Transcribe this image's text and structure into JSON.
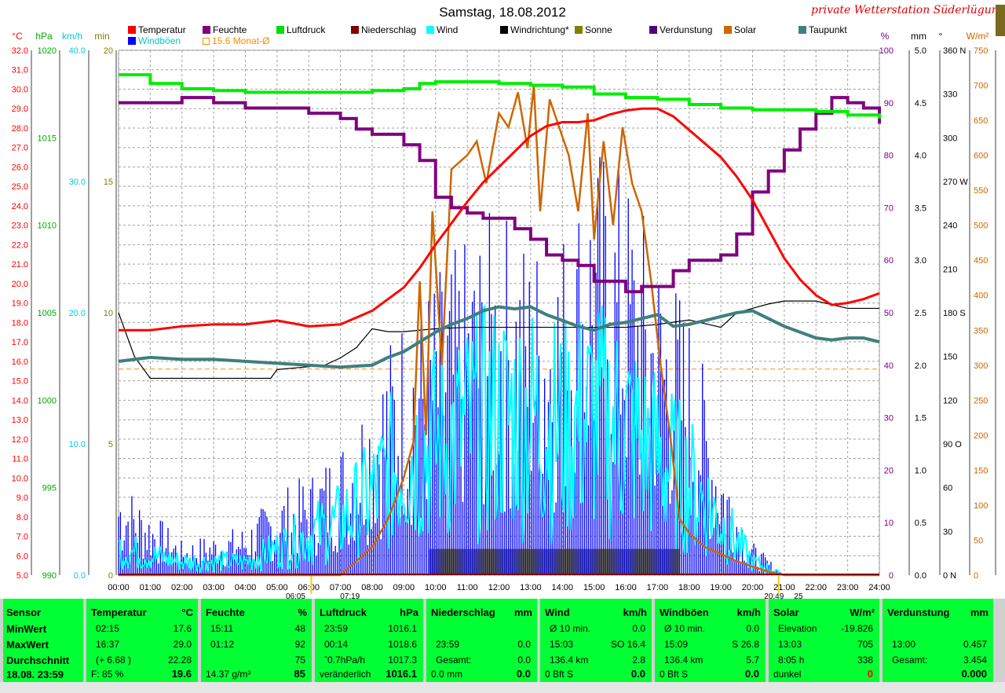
{
  "title": "Samstag, 18.08.2012",
  "station": "private Wetterstation Süderlügum",
  "legend": [
    {
      "label": "Temperatur",
      "color": "#ff0000",
      "x": 163,
      "row": 0
    },
    {
      "label": "Feuchte",
      "color": "#800080",
      "x": 258,
      "row": 0
    },
    {
      "label": "Luftdruck",
      "color": "#00dd00",
      "x": 352,
      "row": 0
    },
    {
      "label": "Niederschlag",
      "color": "#800000",
      "x": 447,
      "row": 0
    },
    {
      "label": "Wind",
      "color": "#00ffff",
      "x": 543,
      "row": 0
    },
    {
      "label": "Windrichtung*",
      "color": "#000000",
      "x": 637,
      "row": 0
    },
    {
      "label": "Sonne",
      "color": "#808000",
      "x": 732,
      "row": 0
    },
    {
      "label": "Verdunstung",
      "color": "#4b0082",
      "x": 827,
      "row": 0
    },
    {
      "label": "Solar",
      "color": "#cc6600",
      "x": 922,
      "row": 0
    },
    {
      "label": "Taupunkt",
      "color": "#3f7f7f",
      "x": 1017,
      "row": 0
    },
    {
      "label": "Windböen",
      "color": "#0000ff",
      "x": 163,
      "row": 1
    },
    {
      "label": "15.6 Monat-Ø",
      "color": "#ff8c00",
      "x": 258,
      "row": 1,
      "hollow": true
    }
  ],
  "axes": {
    "temp": {
      "unit": "°C",
      "color": "#ff0000",
      "min": 5.0,
      "max": 32.0,
      "step": 1.0
    },
    "press": {
      "unit": "hPa",
      "color": "#00aa00",
      "ticks": [
        "1020",
        "1015",
        "1010",
        "1005",
        "1000",
        "995",
        "990"
      ]
    },
    "wind": {
      "unit": "km/h",
      "color": "#00cccc",
      "ticks": [
        "40.0",
        "30.0",
        "20.0",
        "10.0",
        "0.0"
      ]
    },
    "sun": {
      "unit": "min",
      "color": "#808000",
      "ticks": [
        "20",
        "15",
        "10",
        "5",
        "0"
      ]
    },
    "hum": {
      "unit": "%",
      "color": "#800080",
      "ticks": [
        "100",
        "90",
        "80",
        "70",
        "60",
        "50",
        "40",
        "30",
        "20",
        "10",
        "0"
      ]
    },
    "rain": {
      "unit": "mm",
      "color": "#000000",
      "ticks": [
        "5.0",
        "4.5",
        "4.0",
        "3.5",
        "3.0",
        "2.5",
        "2.0",
        "1.5",
        "1.0",
        "0.5",
        "0.0"
      ]
    },
    "dir": {
      "unit": "°",
      "color": "#000000",
      "ticks": [
        "360 N",
        "330",
        "300",
        "270 W",
        "240",
        "210",
        "180 S",
        "150",
        "120",
        "90 O",
        "60",
        "30",
        "0 N"
      ]
    },
    "solar": {
      "unit": "W/m²",
      "color": "#cc6600",
      "ticks": [
        "750",
        "700",
        "650",
        "600",
        "550",
        "500",
        "450",
        "400",
        "350",
        "300",
        "250",
        "200",
        "150",
        "100",
        "50",
        "0"
      ]
    },
    "time": [
      "00:00",
      "01:00",
      "02:00",
      "03:00",
      "04:00",
      "05:00",
      "06:00",
      "07:00",
      "08:00",
      "09:00",
      "10:00",
      "11:00",
      "12:00",
      "13:00",
      "14:00",
      "15:00",
      "16:00",
      "17:00",
      "18:00",
      "19:00",
      "20:00",
      "21:00",
      "22:00",
      "23:00",
      "24:00"
    ]
  },
  "markers": {
    "sunrise": "06:05",
    "sunrise_bf": "07:19",
    "sunset": "20:49",
    "sunset_bf": "25"
  },
  "chart_data": {
    "type": "line",
    "title": "Samstag, 18.08.2012",
    "x_unit": "hour of day",
    "xlim": [
      0,
      24
    ],
    "series": [
      {
        "name": "Temperatur",
        "unit": "°C",
        "x": [
          0,
          1,
          2,
          3,
          4,
          5,
          6,
          7,
          8,
          8.5,
          9,
          9.5,
          10,
          10.5,
          11,
          11.5,
          12,
          12.5,
          13,
          13.5,
          14,
          14.5,
          15,
          15.5,
          16,
          16.5,
          17,
          17.5,
          18,
          18.5,
          19,
          19.5,
          20,
          20.5,
          21,
          21.5,
          22,
          22.5,
          23,
          23.5,
          24
        ],
        "y": [
          17.6,
          17.6,
          17.8,
          17.9,
          17.9,
          18.1,
          17.8,
          17.9,
          18.6,
          19.2,
          19.8,
          20.8,
          22.0,
          23.1,
          24.2,
          25.2,
          26.0,
          26.8,
          27.6,
          28.1,
          28.3,
          28.3,
          28.4,
          28.7,
          28.9,
          29.0,
          29.0,
          28.6,
          27.9,
          27.2,
          26.5,
          25.5,
          24.3,
          22.8,
          21.3,
          20.2,
          19.4,
          18.9,
          19.0,
          19.2,
          19.5
        ]
      },
      {
        "name": "Feuchte",
        "unit": "%",
        "x": [
          0,
          1,
          2,
          3,
          4,
          5,
          6,
          7,
          7.5,
          8,
          8.5,
          9,
          9.5,
          10,
          10.5,
          11,
          11.5,
          12,
          12.5,
          13,
          13.5,
          14,
          14.5,
          15,
          15.5,
          16,
          16.5,
          17,
          17.5,
          18,
          18.5,
          19,
          19.5,
          20,
          20.5,
          21,
          21.5,
          22,
          22.5,
          23,
          23.5,
          24
        ],
        "y": [
          90,
          90,
          91,
          90,
          89,
          89,
          88,
          87,
          85,
          84,
          84,
          82,
          79,
          72,
          70,
          69,
          68,
          68,
          66,
          64,
          61,
          60,
          59,
          56,
          56,
          54,
          55,
          55,
          58,
          60,
          60,
          61,
          65,
          73,
          77,
          81,
          85,
          88,
          91,
          90,
          89,
          86
        ]
      },
      {
        "name": "Luftdruck",
        "unit": "hPa",
        "x": [
          0,
          1,
          2,
          3,
          4,
          5,
          6,
          7,
          8,
          9,
          9.5,
          10,
          11,
          12,
          13,
          14,
          15,
          16,
          17,
          18,
          19,
          20,
          21,
          22,
          23,
          24
        ],
        "y": [
          1018.6,
          1018.1,
          1017.8,
          1017.7,
          1017.6,
          1017.6,
          1017.6,
          1017.6,
          1017.7,
          1017.8,
          1018.1,
          1018.2,
          1018.2,
          1018.1,
          1018.0,
          1017.9,
          1017.5,
          1017.3,
          1017.2,
          1016.9,
          1016.7,
          1016.6,
          1016.6,
          1016.5,
          1016.3,
          1016.1
        ]
      },
      {
        "name": "Taupunkt",
        "unit": "°C",
        "x": [
          0,
          1,
          2,
          3,
          4,
          5,
          6,
          7,
          8,
          8.5,
          9,
          9.5,
          10,
          10.5,
          11,
          11.5,
          12,
          12.5,
          13,
          13.5,
          14,
          14.5,
          15,
          15.5,
          16,
          16.5,
          17,
          17.5,
          18,
          18.5,
          19,
          19.5,
          20,
          20.5,
          21,
          21.5,
          22,
          22.5,
          23,
          23.5,
          24
        ],
        "y": [
          16.0,
          16.2,
          16.1,
          16.1,
          16.0,
          15.9,
          15.8,
          15.7,
          15.8,
          16.2,
          16.5,
          17.0,
          17.5,
          17.9,
          18.2,
          18.6,
          18.8,
          18.7,
          18.8,
          18.4,
          18.1,
          17.8,
          17.6,
          17.9,
          18.0,
          18.2,
          18.4,
          17.8,
          17.9,
          18.1,
          18.3,
          18.5,
          18.6,
          18.2,
          17.8,
          17.5,
          17.2,
          17.1,
          17.2,
          17.2,
          17.0
        ]
      },
      {
        "name": "Solar",
        "unit": "W/m²",
        "x": [
          0,
          7,
          7.5,
          8,
          8.5,
          9,
          9.3,
          9.5,
          9.7,
          9.9,
          10.2,
          10.5,
          11,
          11.3,
          11.6,
          12,
          12.3,
          12.6,
          12.9,
          13.1,
          13.3,
          13.6,
          13.9,
          14.2,
          14.5,
          14.8,
          15,
          15.3,
          15.6,
          15.9,
          16.2,
          16.5,
          16.8,
          17.1,
          17.4,
          17.7,
          18,
          18.5,
          19,
          19.5,
          20,
          20.5,
          21,
          24
        ],
        "y": [
          0,
          0,
          20,
          40,
          80,
          140,
          190,
          420,
          200,
          520,
          300,
          580,
          600,
          620,
          560,
          660,
          640,
          690,
          610,
          700,
          520,
          680,
          640,
          600,
          520,
          660,
          480,
          620,
          500,
          640,
          560,
          520,
          420,
          300,
          200,
          80,
          60,
          40,
          30,
          20,
          12,
          5,
          0,
          0
        ]
      },
      {
        "name": "Windrichtung*",
        "unit": "°",
        "x": [
          0,
          0.5,
          1,
          2,
          3,
          4,
          4.8,
          5,
          6,
          6.5,
          7,
          7.5,
          8,
          8.5,
          9,
          9.5,
          10,
          11,
          12,
          13,
          14,
          15,
          16,
          17,
          18,
          19,
          19.5,
          20,
          20.5,
          21,
          22,
          23,
          24
        ],
        "y": [
          180,
          150,
          135,
          135,
          135,
          135,
          135,
          141,
          143,
          144,
          149,
          156,
          169,
          167,
          167,
          168,
          169,
          170,
          170,
          170,
          170,
          170,
          170,
          172,
          175,
          170,
          180,
          183,
          186,
          188,
          188,
          183,
          183
        ]
      },
      {
        "name": "Wind",
        "unit": "km/h",
        "x": [
          0,
          2,
          4,
          5,
          6,
          7,
          8,
          9,
          10,
          11,
          12,
          13,
          14,
          15,
          16,
          17,
          18,
          19,
          20,
          21,
          24
        ],
        "y": [
          2,
          1,
          1,
          2,
          3,
          4,
          6,
          9,
          10,
          11,
          12,
          12,
          11,
          12,
          11,
          9,
          7,
          4,
          1,
          0,
          0
        ]
      },
      {
        "name": "Windböen",
        "unit": "km/h",
        "x": [
          0,
          2,
          4,
          5,
          6,
          7,
          8,
          9,
          10,
          11,
          12,
          13,
          14,
          15,
          16,
          17,
          18,
          19,
          20,
          21,
          24
        ],
        "y": [
          6,
          2,
          3,
          5,
          6,
          8,
          12,
          16,
          18,
          20,
          22,
          20,
          21,
          26,
          24,
          20,
          16,
          8,
          2,
          0,
          0
        ]
      },
      {
        "name": "Sonne",
        "unit": "min",
        "x": [
          9.8,
          17.7
        ],
        "y": [
          1,
          1
        ]
      },
      {
        "name": "15.6 Monat-Ø",
        "unit": "°C",
        "x": [
          0,
          24
        ],
        "y": [
          15.6,
          15.6
        ]
      }
    ]
  },
  "summary": {
    "sensor": {
      "head": "Sensor",
      "rows": [
        "MinWert",
        "MaxWert",
        "Durchschnitt",
        "18.08. 23:59"
      ]
    },
    "temperatur": {
      "head": "Temperatur",
      "unit": "°C",
      "rows": [
        [
          "02:15",
          "17.6"
        ],
        [
          "16:37",
          "29.0"
        ],
        [
          "(+ 6.68 )",
          "22.28"
        ],
        [
          "F: 85 %",
          "19.6"
        ]
      ]
    },
    "feuchte": {
      "head": "Feuchte",
      "unit": "%",
      "rows": [
        [
          "15:11",
          "48"
        ],
        [
          "01:12",
          "92"
        ],
        [
          "",
          "75"
        ],
        [
          "14.37 g/m³",
          "85"
        ]
      ]
    },
    "luftdruck": {
      "head": "Luftdruck",
      "unit": "hPa",
      "rows": [
        [
          "23:59",
          "1016.1"
        ],
        [
          "00:14",
          "1018.6"
        ],
        [
          "ˆ0.7hPa/h",
          "1017.3"
        ],
        [
          "veränderlich",
          "1016.1"
        ]
      ]
    },
    "niederschlag": {
      "head": "Niederschlag",
      "unit": "mm",
      "rows": [
        [
          "",
          ""
        ],
        [
          "23:59",
          "0.0"
        ],
        [
          "Gesamt:",
          "0.0"
        ],
        [
          "0.0 mm",
          "0.0"
        ]
      ]
    },
    "wind": {
      "head": "Wind",
      "unit": "km/h",
      "rows": [
        [
          "Ø 10 min.",
          "0.0"
        ],
        [
          "15:03",
          "SO 16.4"
        ],
        [
          "136.4 km",
          "2.8"
        ],
        [
          "0 Bft S",
          "0.0"
        ]
      ]
    },
    "windboeen": {
      "head": "Windböen",
      "unit": "km/h",
      "rows": [
        [
          "Ø 10 min.",
          "0.0"
        ],
        [
          "15:09",
          "S 26.8"
        ],
        [
          "136.4 km",
          "5.7"
        ],
        [
          "0 Bft S",
          "0.0"
        ]
      ]
    },
    "solar": {
      "head": "Solar",
      "unit": "W/m²",
      "rows": [
        [
          "Elevation",
          "-19.826"
        ],
        [
          "13:03",
          "705"
        ],
        [
          "8:05 h",
          "338"
        ],
        [
          "dunkel",
          "0"
        ]
      ]
    },
    "verdunstung": {
      "head": "Verdunstung",
      "unit": "mm",
      "rows": [
        [
          "",
          ""
        ],
        [
          "13:00",
          "0.457"
        ],
        [
          "Gesamt:",
          "3.454"
        ],
        [
          "",
          "0.000"
        ]
      ]
    }
  }
}
